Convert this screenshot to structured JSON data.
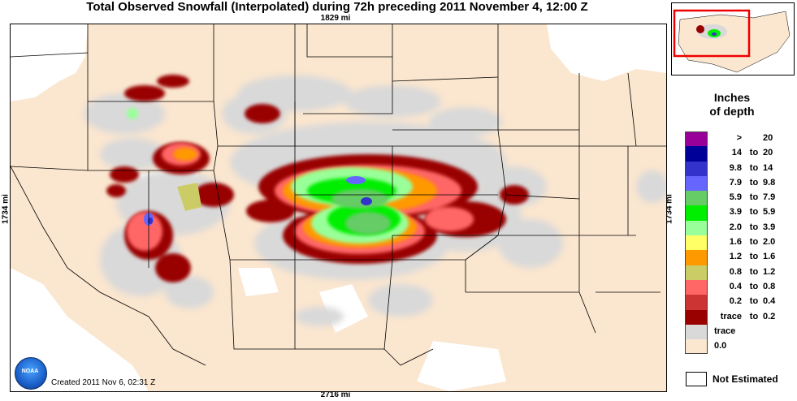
{
  "title": "Total Observed Snowfall (Interpolated) during 72h preceding 2011 November 4, 12:00 Z",
  "distances": {
    "top": "1829 mi",
    "bottom": "2716 mi",
    "left": "1734 mi",
    "right": "1734 mi"
  },
  "legend": {
    "title_line1": "Inches",
    "title_line2": "of depth",
    "items": [
      {
        "lo": ">",
        "sep": "",
        "hi": "20",
        "color": "#990099"
      },
      {
        "lo": "14",
        "sep": "to",
        "hi": "20",
        "color": "#000099"
      },
      {
        "lo": "9.8",
        "sep": "to",
        "hi": "14",
        "color": "#3333cc"
      },
      {
        "lo": "7.9",
        "sep": "to",
        "hi": "9.8",
        "color": "#6666ff"
      },
      {
        "lo": "5.9",
        "sep": "to",
        "hi": "7.9",
        "color": "#66cc66"
      },
      {
        "lo": "3.9",
        "sep": "to",
        "hi": "5.9",
        "color": "#00ee00"
      },
      {
        "lo": "2.0",
        "sep": "to",
        "hi": "3.9",
        "color": "#99ff99"
      },
      {
        "lo": "1.6",
        "sep": "to",
        "hi": "2.0",
        "color": "#ffff66"
      },
      {
        "lo": "1.2",
        "sep": "to",
        "hi": "1.6",
        "color": "#ff9900"
      },
      {
        "lo": "0.8",
        "sep": "to",
        "hi": "1.2",
        "color": "#cccc66"
      },
      {
        "lo": "0.4",
        "sep": "to",
        "hi": "0.8",
        "color": "#ff6666"
      },
      {
        "lo": "0.2",
        "sep": "to",
        "hi": "0.4",
        "color": "#cc3333"
      },
      {
        "lo": "trace",
        "sep": "to",
        "hi": "0.2",
        "color": "#990000"
      },
      {
        "lo": "",
        "sep": "",
        "hi": "",
        "solo": "trace",
        "color": "#d9d9d9"
      },
      {
        "lo": "",
        "sep": "",
        "hi": "",
        "solo": "0.0",
        "color": "#fbe6cf"
      }
    ],
    "not_estimated": "Not Estimated"
  },
  "created": "Created 2011 Nov 6, 02:31 Z",
  "logo_text": "NOAA",
  "colors": {
    "background": "#fbe6cf",
    "border": "#000000",
    "inset_frame": "#ee0000"
  }
}
